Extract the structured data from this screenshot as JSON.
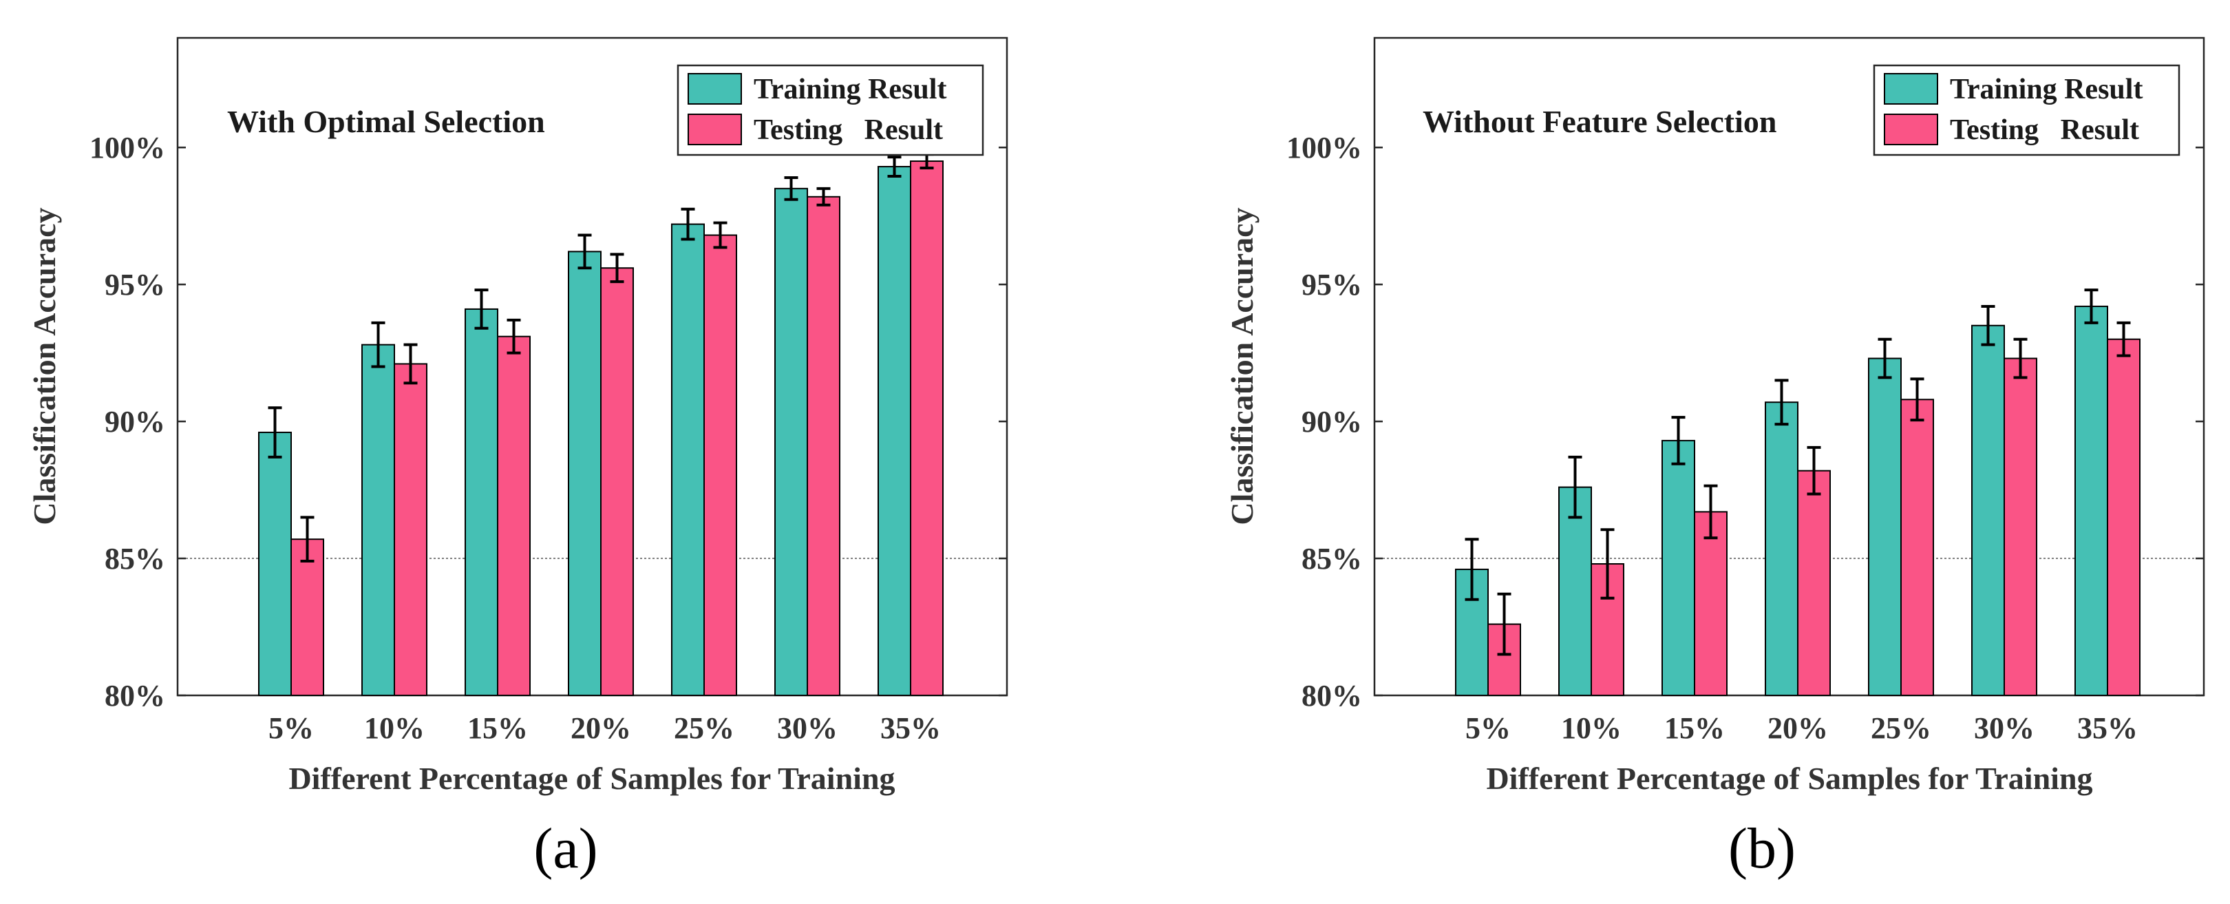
{
  "colors": {
    "training": "#45C0B4",
    "testing": "#FA5486",
    "axis": "#262626",
    "errorbar": "#000000"
  },
  "chart_data": [
    {
      "type": "bar",
      "title": "With Optimal Selection",
      "panel_label": "(a)",
      "xlabel": "Different Percentage of Samples for Training",
      "ylabel": "Classification Accuracy",
      "categories": [
        "5%",
        "10%",
        "15%",
        "20%",
        "25%",
        "30%",
        "35%"
      ],
      "ylim": [
        80,
        104
      ],
      "yticks": [
        80,
        85,
        90,
        95,
        100
      ],
      "ytick_labels": [
        "80%",
        "85%",
        "90%",
        "95%",
        "100%"
      ],
      "reference_line": 85,
      "legend_position": "top-right",
      "series": [
        {
          "name": "Training Result",
          "values": [
            89.6,
            92.8,
            94.1,
            96.2,
            97.2,
            98.5,
            99.3
          ],
          "errors": [
            0.9,
            0.8,
            0.7,
            0.6,
            0.55,
            0.4,
            0.35
          ]
        },
        {
          "name": "Testing   Result",
          "values": [
            85.7,
            92.1,
            93.1,
            95.6,
            96.8,
            98.2,
            99.5
          ],
          "errors": [
            0.8,
            0.7,
            0.6,
            0.5,
            0.45,
            0.3,
            0.25
          ]
        }
      ]
    },
    {
      "type": "bar",
      "title": "Without Feature Selection",
      "panel_label": "(b)",
      "xlabel": "Different Percentage of Samples for Training",
      "ylabel": "Classification Accuracy",
      "categories": [
        "5%",
        "10%",
        "15%",
        "20%",
        "25%",
        "30%",
        "35%"
      ],
      "ylim": [
        80,
        104
      ],
      "yticks": [
        80,
        85,
        90,
        95,
        100
      ],
      "ytick_labels": [
        "80%",
        "85%",
        "90%",
        "95%",
        "100%"
      ],
      "reference_line": 85,
      "legend_position": "top-right",
      "series": [
        {
          "name": "Training Result",
          "values": [
            84.6,
            87.6,
            89.3,
            90.7,
            92.3,
            93.5,
            94.2
          ],
          "errors": [
            1.1,
            1.1,
            0.85,
            0.8,
            0.7,
            0.7,
            0.6
          ]
        },
        {
          "name": "Testing   Result",
          "values": [
            82.6,
            84.8,
            86.7,
            88.2,
            90.8,
            92.3,
            93.0
          ],
          "errors": [
            1.1,
            1.25,
            0.95,
            0.85,
            0.75,
            0.7,
            0.6
          ]
        }
      ]
    }
  ]
}
